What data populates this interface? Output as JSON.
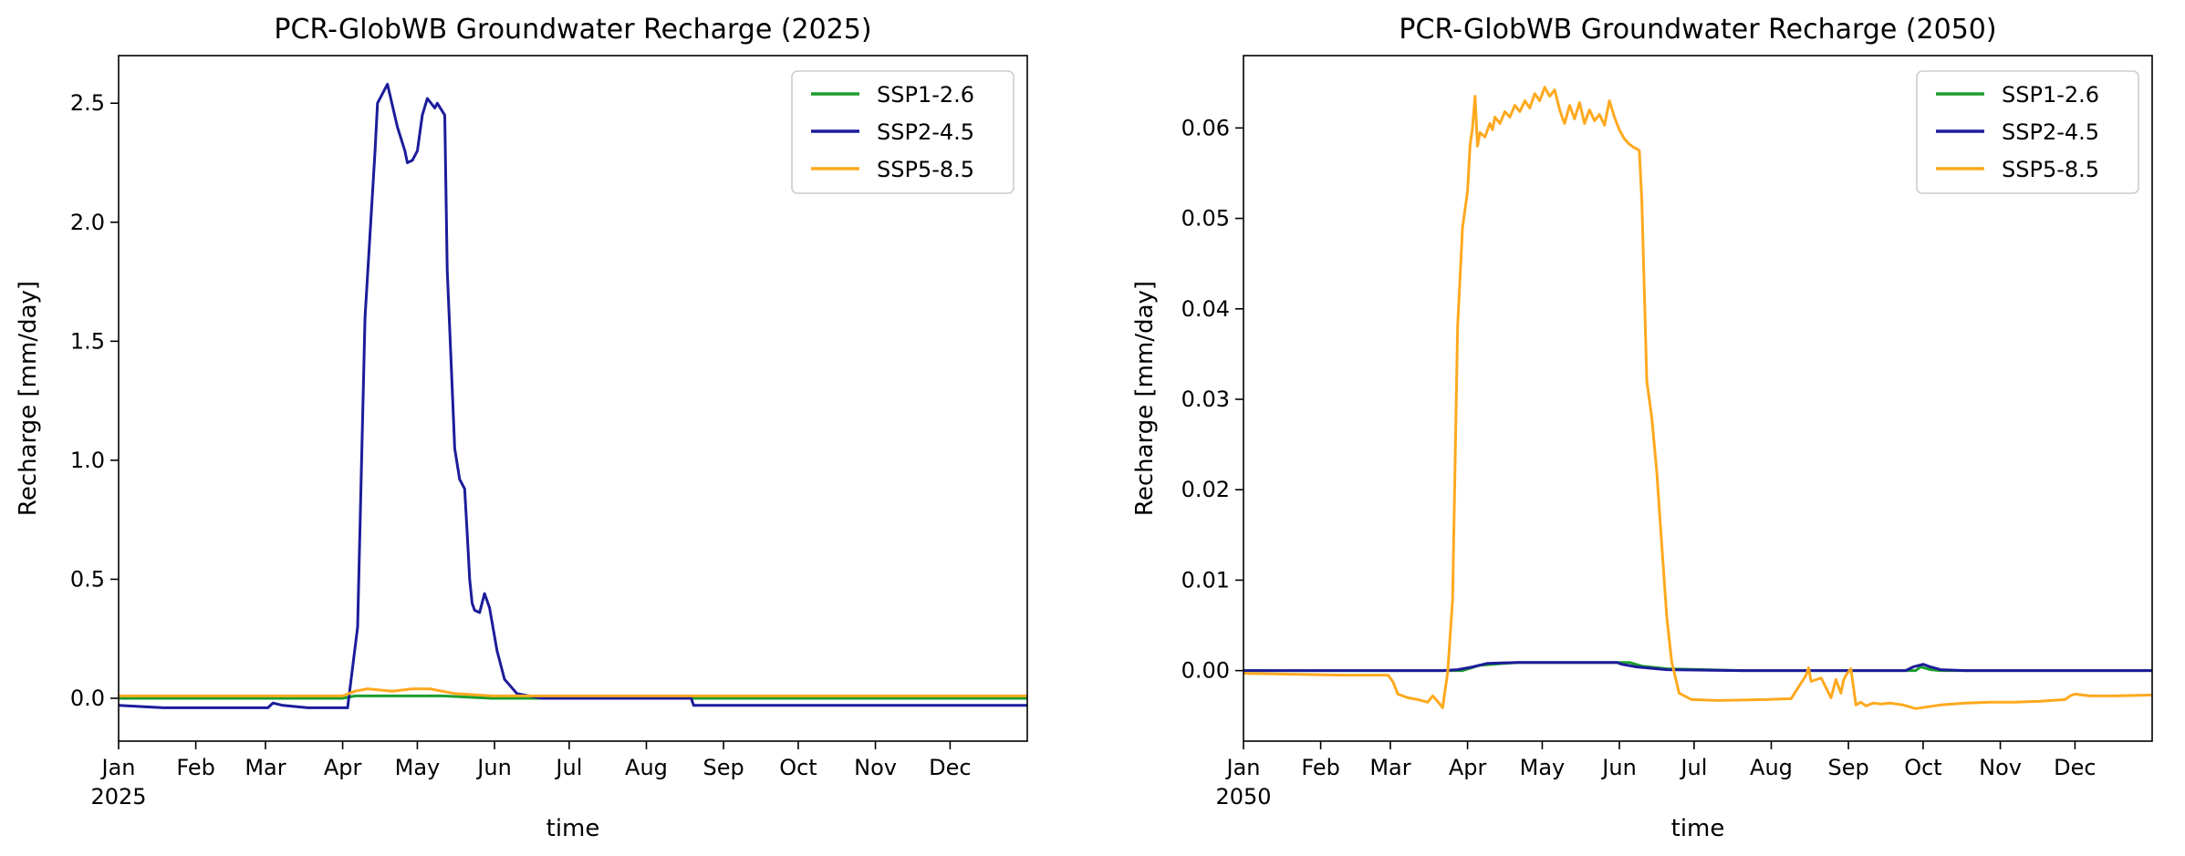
{
  "colors": {
    "ssp126": "#1a9e2c",
    "ssp245": "#1c1c9a",
    "ssp585": "#ffa91f"
  },
  "chart_data": [
    {
      "type": "line",
      "title": "PCR-GlobWB Groundwater Recharge (2025)",
      "xlabel": "time",
      "ylabel": "Recharge [mm/day]",
      "x_ticks": [
        "Jan",
        "Feb",
        "Mar",
        "Apr",
        "May",
        "Jun",
        "Jul",
        "Aug",
        "Sep",
        "Oct",
        "Nov",
        "Dec"
      ],
      "x_year": "2025",
      "xlim": [
        0,
        365
      ],
      "ylim": [
        -0.18,
        2.7
      ],
      "y_ticks": [
        "0.0",
        "0.5",
        "1.0",
        "1.5",
        "2.0",
        "2.5"
      ],
      "legend": [
        "SSP1-2.6",
        "SSP2-4.5",
        "SSP5-8.5"
      ],
      "legend_location": "top-right",
      "series": [
        {
          "name": "SSP1-2.6",
          "x": [
            0,
            90,
            95,
            110,
            130,
            150,
            365
          ],
          "y": [
            0.0,
            0.0,
            0.01,
            0.01,
            0.01,
            0.0,
            0.0
          ]
        },
        {
          "name": "SSP2-4.5",
          "x": [
            0,
            18,
            60,
            62,
            66,
            76,
            88,
            92,
            96,
            99,
            103,
            104,
            108,
            112,
            115,
            116,
            118,
            120,
            122,
            124,
            127,
            128,
            131,
            132,
            134,
            135,
            137,
            139,
            140,
            141,
            142,
            143,
            145,
            147,
            149,
            152,
            155,
            160,
            170,
            200,
            230,
            231,
            240,
            365
          ],
          "y": [
            -0.03,
            -0.04,
            -0.04,
            -0.02,
            -0.03,
            -0.04,
            -0.04,
            -0.04,
            0.3,
            1.6,
            2.3,
            2.5,
            2.58,
            2.4,
            2.3,
            2.25,
            2.26,
            2.3,
            2.45,
            2.52,
            2.48,
            2.5,
            2.45,
            1.8,
            1.3,
            1.05,
            0.92,
            0.88,
            0.7,
            0.5,
            0.4,
            0.37,
            0.36,
            0.44,
            0.38,
            0.2,
            0.08,
            0.02,
            0.0,
            0.0,
            0.0,
            -0.03,
            -0.03,
            -0.03
          ]
        },
        {
          "name": "SSP5-8.5",
          "x": [
            0,
            90,
            95,
            100,
            110,
            118,
            125,
            135,
            150,
            365
          ],
          "y": [
            0.01,
            0.01,
            0.03,
            0.04,
            0.03,
            0.04,
            0.04,
            0.02,
            0.01,
            0.01
          ]
        }
      ]
    },
    {
      "type": "line",
      "title": "PCR-GlobWB Groundwater Recharge (2050)",
      "xlabel": "time",
      "ylabel": "Recharge [mm/day]",
      "x_ticks": [
        "Jan",
        "Feb",
        "Mar",
        "Apr",
        "May",
        "Jun",
        "Jul",
        "Aug",
        "Sep",
        "Oct",
        "Nov",
        "Dec"
      ],
      "x_year": "2050",
      "xlim": [
        0,
        365
      ],
      "ylim": [
        -0.0078,
        0.068
      ],
      "y_ticks": [
        "0.00",
        "0.01",
        "0.02",
        "0.03",
        "0.04",
        "0.05",
        "0.06"
      ],
      "legend": [
        "SSP1-2.6",
        "SSP2-4.5",
        "SSP5-8.5"
      ],
      "legend_location": "top-right",
      "series": [
        {
          "name": "SSP1-2.6",
          "x": [
            0,
            80,
            88,
            95,
            110,
            140,
            150,
            155,
            160,
            170,
            200,
            250,
            270,
            272,
            276,
            280,
            290,
            365
          ],
          "y": [
            0.0,
            0.0,
            0.0,
            0.0006,
            0.0009,
            0.0009,
            0.0009,
            0.0009,
            0.0005,
            0.0002,
            0.0,
            0.0,
            0.0,
            0.0004,
            0.0001,
            0.0,
            0.0,
            0.0
          ]
        },
        {
          "name": "SSP2-4.5",
          "x": [
            0,
            80,
            86,
            92,
            98,
            110,
            140,
            150,
            152,
            158,
            170,
            200,
            250,
            266,
            269,
            273,
            276,
            280,
            290,
            365
          ],
          "y": [
            0.0,
            0.0,
            0.0001,
            0.0004,
            0.0008,
            0.0009,
            0.0009,
            0.0009,
            0.0007,
            0.0004,
            0.0001,
            0.0,
            0.0,
            0.0,
            0.0004,
            0.0007,
            0.0004,
            0.0001,
            0.0,
            0.0
          ]
        },
        {
          "name": "SSP5-8.5",
          "x": [
            0,
            20,
            40,
            58,
            60,
            62,
            64,
            66,
            70,
            74,
            76,
            78,
            80,
            82,
            84,
            86,
            88,
            90,
            91,
            92,
            93,
            94,
            95,
            97,
            99,
            100,
            101,
            103,
            105,
            107,
            109,
            111,
            113,
            115,
            117,
            119,
            121,
            123,
            125,
            127,
            128,
            129,
            131,
            133,
            135,
            137,
            139,
            141,
            143,
            145,
            147,
            149,
            151,
            153,
            155,
            156,
            157,
            158,
            159,
            160,
            162,
            164,
            166,
            168,
            170,
            172,
            175,
            180,
            190,
            210,
            220,
            226,
            227,
            228,
            232,
            236,
            238,
            240,
            241,
            242,
            244,
            246,
            248,
            250,
            253,
            256,
            260,
            265,
            270,
            280,
            290,
            300,
            310,
            320,
            330,
            332,
            334,
            340,
            350,
            365
          ],
          "y": [
            -0.0003,
            -0.0004,
            -0.0005,
            -0.0005,
            -0.0012,
            -0.0026,
            -0.0028,
            -0.003,
            -0.0032,
            -0.0035,
            -0.0028,
            -0.0034,
            -0.0041,
            -0.0002,
            0.0078,
            0.038,
            0.049,
            0.053,
            0.058,
            0.06,
            0.0635,
            0.058,
            0.0595,
            0.059,
            0.0605,
            0.0598,
            0.0612,
            0.0605,
            0.0618,
            0.0612,
            0.0625,
            0.0618,
            0.063,
            0.0622,
            0.0638,
            0.063,
            0.0645,
            0.0635,
            0.0642,
            0.062,
            0.0612,
            0.0605,
            0.0625,
            0.061,
            0.0628,
            0.0605,
            0.062,
            0.0608,
            0.0615,
            0.0603,
            0.063,
            0.0612,
            0.0598,
            0.0588,
            0.0582,
            0.058,
            0.0578,
            0.0577,
            0.0575,
            0.052,
            0.032,
            0.028,
            0.022,
            0.014,
            0.006,
            0.001,
            -0.0025,
            -0.0032,
            -0.0033,
            -0.0032,
            -0.0031,
            -0.0005,
            0.0003,
            -0.0012,
            -0.0008,
            -0.003,
            -0.001,
            -0.0025,
            -0.0011,
            -0.0005,
            0.0002,
            -0.0038,
            -0.0035,
            -0.0039,
            -0.0036,
            -0.0037,
            -0.0036,
            -0.0038,
            -0.0042,
            -0.0038,
            -0.0036,
            -0.0035,
            -0.0035,
            -0.0034,
            -0.0032,
            -0.0028,
            -0.0026,
            -0.0028,
            -0.0028,
            -0.0027
          ]
        }
      ]
    }
  ]
}
